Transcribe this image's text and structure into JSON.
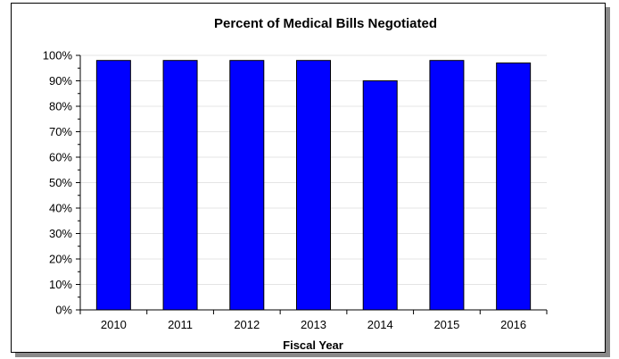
{
  "chart_data": {
    "type": "bar",
    "title": "Percent of Medical Bills Negotiated",
    "xlabel": "Fiscal Year",
    "ylabel": "",
    "categories": [
      "2010",
      "2011",
      "2012",
      "2013",
      "2014",
      "2015",
      "2016"
    ],
    "values": [
      98,
      98,
      98,
      98,
      90,
      98,
      97
    ],
    "ylim": [
      0,
      100
    ],
    "y_ticks": [
      "0%",
      "10%",
      "20%",
      "30%",
      "40%",
      "50%",
      "60%",
      "70%",
      "80%",
      "90%",
      "100%"
    ],
    "bar_color": "#0000ff",
    "grid": true,
    "legend": "none"
  }
}
